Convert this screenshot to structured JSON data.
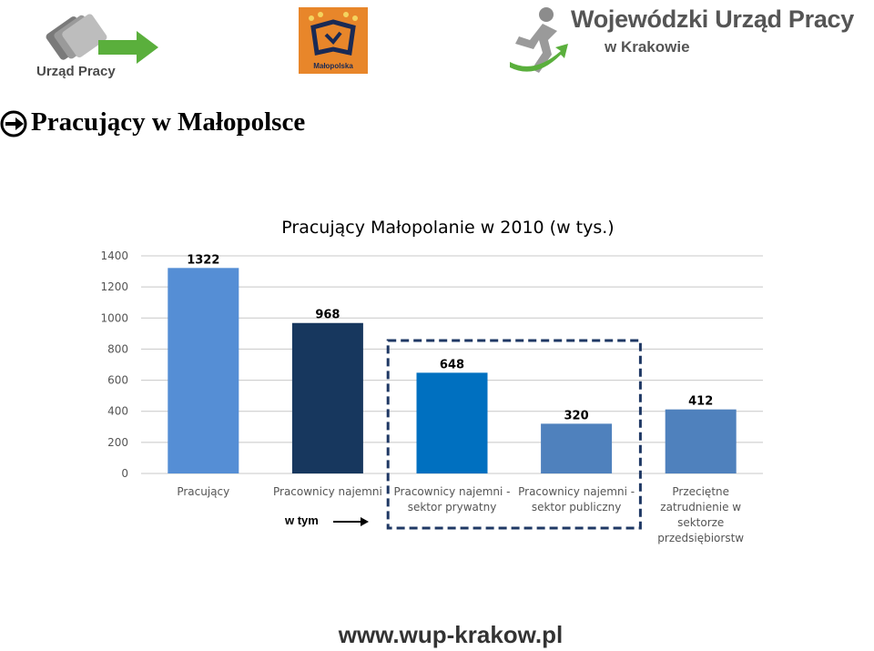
{
  "header": {
    "left_logo_text": "Urząd Pracy",
    "center_logo_text": "Małopolska",
    "right_logo_title": "Wojewódzki Urząd Pracy",
    "right_logo_subtitle": "w Krakowie"
  },
  "page_title": "Pracujący w Małopolsce",
  "chart_data": {
    "type": "bar",
    "title": "Pracujący Małopolanie w 2010 (w tys.)",
    "categories": [
      [
        "Pracujący"
      ],
      [
        "Pracownicy najemni"
      ],
      [
        "Pracownicy najemni -",
        "sektor prywatny"
      ],
      [
        "Pracownicy najemni -",
        "sektor publiczny"
      ],
      [
        "Przeciętne",
        "zatrudnienie w",
        "sektorze",
        "przedsiębiorstw"
      ]
    ],
    "values": [
      1322,
      968,
      648,
      320,
      412
    ],
    "data_labels": [
      "1322",
      "968",
      "648",
      "320",
      "412"
    ],
    "bar_colors": [
      "#558ed5",
      "#17375e",
      "#0070c0",
      "#4f81bd",
      "#4f81bd"
    ],
    "ylim": [
      0,
      1400
    ],
    "yticks": [
      0,
      200,
      400,
      600,
      800,
      1000,
      1200,
      1400
    ],
    "grid": true,
    "legend": "none",
    "annotation": {
      "text": "w tym",
      "highlighted_categories": [
        2,
        3
      ]
    }
  },
  "footer": {
    "url": "www.wup-krakow.pl"
  }
}
